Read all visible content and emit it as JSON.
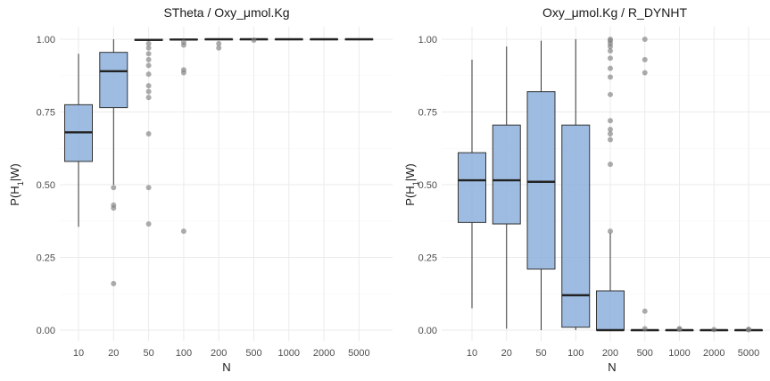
{
  "chart_data": [
    {
      "type": "box",
      "title": "STheta / Oxy_μmol.Kg",
      "xlabel": "N",
      "ylabel_main": "P(H",
      "ylabel_sub": "1",
      "ylabel_tail": "|W)",
      "categories": [
        "10",
        "20",
        "50",
        "100",
        "200",
        "500",
        "1000",
        "2000",
        "5000"
      ],
      "ylim": [
        0,
        1
      ],
      "yticks": [
        "0.00",
        "0.25",
        "0.50",
        "0.75",
        "1.00"
      ],
      "fill_color": "#8db0dc",
      "outlier_color": "#7f7f7f",
      "boxes": [
        {
          "low": 0.355,
          "q1": 0.58,
          "median": 0.68,
          "q3": 0.775,
          "high": 0.95,
          "outliers": []
        },
        {
          "low": 0.5,
          "q1": 0.765,
          "median": 0.89,
          "q3": 0.955,
          "high": 1.0,
          "outliers": [
            0.49,
            0.43,
            0.42,
            0.16
          ]
        },
        {
          "low": 0.994,
          "q1": 0.996,
          "median": 0.998,
          "q3": 1.0,
          "high": 1.0,
          "outliers": [
            0.985,
            0.97,
            0.95,
            0.93,
            0.91,
            0.88,
            0.84,
            0.82,
            0.8,
            0.675,
            0.49,
            0.365
          ]
        },
        {
          "low": 0.997,
          "q1": 0.998,
          "median": 0.999,
          "q3": 1.0,
          "high": 1.0,
          "outliers": [
            0.99,
            0.98,
            0.895,
            0.885,
            0.34
          ]
        },
        {
          "low": 0.999,
          "q1": 0.9995,
          "median": 1.0,
          "q3": 1.0,
          "high": 1.0,
          "outliers": [
            0.985,
            0.97
          ]
        },
        {
          "low": 1.0,
          "q1": 1.0,
          "median": 1.0,
          "q3": 1.0,
          "high": 1.0,
          "outliers": [
            0.997
          ]
        },
        {
          "low": 1.0,
          "q1": 1.0,
          "median": 1.0,
          "q3": 1.0,
          "high": 1.0,
          "outliers": []
        },
        {
          "low": 1.0,
          "q1": 1.0,
          "median": 1.0,
          "q3": 1.0,
          "high": 1.0,
          "outliers": []
        },
        {
          "low": 1.0,
          "q1": 1.0,
          "median": 1.0,
          "q3": 1.0,
          "high": 1.0,
          "outliers": []
        }
      ]
    },
    {
      "type": "box",
      "title": "Oxy_μmol.Kg / R_DYNHT",
      "xlabel": "N",
      "ylabel_main": "P(H",
      "ylabel_sub": "1",
      "ylabel_tail": "|W)",
      "categories": [
        "10",
        "20",
        "50",
        "100",
        "200",
        "500",
        "1000",
        "2000",
        "5000"
      ],
      "ylim": [
        0,
        1
      ],
      "yticks": [
        "0.00",
        "0.25",
        "0.50",
        "0.75",
        "1.00"
      ],
      "fill_color": "#8db0dc",
      "outlier_color": "#7f7f7f",
      "boxes": [
        {
          "low": 0.075,
          "q1": 0.37,
          "median": 0.515,
          "q3": 0.61,
          "high": 0.93,
          "outliers": []
        },
        {
          "low": 0.005,
          "q1": 0.365,
          "median": 0.515,
          "q3": 0.705,
          "high": 0.975,
          "outliers": []
        },
        {
          "low": 0.0,
          "q1": 0.21,
          "median": 0.51,
          "q3": 0.82,
          "high": 0.995,
          "outliers": []
        },
        {
          "low": 0.0,
          "q1": 0.01,
          "median": 0.12,
          "q3": 0.705,
          "high": 1.0,
          "outliers": []
        },
        {
          "low": 0.0,
          "q1": 0.0,
          "median": 0.0,
          "q3": 0.135,
          "high": 0.335,
          "outliers": [
            1.0,
            0.995,
            0.985,
            0.975,
            0.96,
            0.935,
            0.9,
            0.87,
            0.81,
            0.72,
            0.69,
            0.675,
            0.655,
            0.57,
            0.34
          ]
        },
        {
          "low": 0.0,
          "q1": 0.0,
          "median": 0.0,
          "q3": 0.0,
          "high": 0.0,
          "outliers": [
            1.0,
            0.93,
            0.885,
            0.065,
            0.005
          ]
        },
        {
          "low": 0.0,
          "q1": 0.0,
          "median": 0.0,
          "q3": 0.0,
          "high": 0.0,
          "outliers": [
            0.005,
            0.003
          ]
        },
        {
          "low": 0.0,
          "q1": 0.0,
          "median": 0.0,
          "q3": 0.0,
          "high": 0.0,
          "outliers": [
            0.002
          ]
        },
        {
          "low": 0.0,
          "q1": 0.0,
          "median": 0.0,
          "q3": 0.0,
          "high": 0.0,
          "outliers": [
            0.003,
            0.001
          ]
        }
      ]
    }
  ]
}
